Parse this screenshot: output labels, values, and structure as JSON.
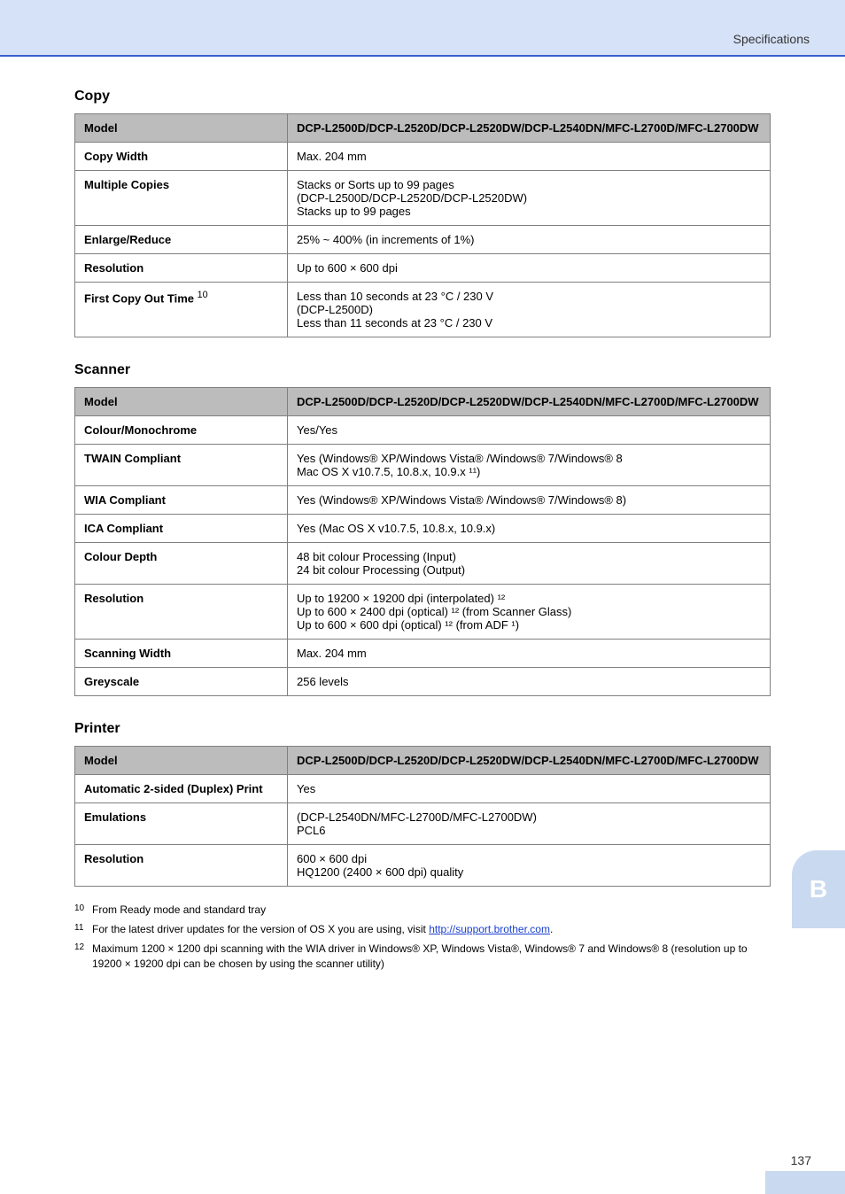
{
  "header": {
    "title": "Specifications"
  },
  "sections": [
    {
      "title": "Copy",
      "columns": [
        "Model",
        "DCP-L2500D/DCP-L2520D/DCP-L2520DW/DCP-L2540DN/MFC-L2700D/MFC-L2700DW"
      ],
      "rows": [
        {
          "label": "Copy Width",
          "value": "Max. 204 mm"
        },
        {
          "label": "Multiple Copies",
          "value_lines": [
            "Stacks or Sorts up to 99 pages",
            "(DCP-L2500D/DCP-L2520D/DCP-L2520DW)",
            "Stacks up to 99 pages"
          ]
        },
        {
          "label": "Enlarge/Reduce",
          "value": "25% ~ 400% (in increments of 1%)"
        },
        {
          "label": "Resolution",
          "value": "Up to 600 × 600 dpi"
        },
        {
          "label": "First Copy Out Time",
          "sup": "10",
          "value_lines": [
            "Less than 10 seconds at 23 °C / 230 V",
            "(DCP-L2500D)",
            "Less than 11 seconds at 23 °C / 230 V"
          ]
        }
      ]
    },
    {
      "title": "Scanner",
      "columns": [
        "Model",
        "DCP-L2500D/DCP-L2520D/DCP-L2520DW/DCP-L2540DN/MFC-L2700D/MFC-L2700DW"
      ],
      "rows": [
        {
          "label": "Colour/Monochrome",
          "value": "Yes/Yes"
        },
        {
          "label": "TWAIN Compliant",
          "value_lines": [
            "Yes (Windows® XP/Windows Vista® /Windows® 7/Windows® 8",
            "Mac OS X v10.7.5, 10.8.x, 10.9.x ¹¹)"
          ]
        },
        {
          "label": "WIA Compliant",
          "value": "Yes (Windows® XP/Windows Vista® /Windows® 7/Windows® 8)"
        },
        {
          "label": "ICA Compliant",
          "value": "Yes (Mac OS X v10.7.5, 10.8.x, 10.9.x)"
        },
        {
          "label": "Colour Depth",
          "value_lines": [
            "48 bit colour Processing (Input)",
            "24 bit colour Processing (Output)"
          ]
        },
        {
          "label": "Resolution",
          "value_lines": [
            "Up to 19200 × 19200 dpi (interpolated) ¹²",
            "Up to 600 × 2400 dpi (optical) ¹² (from Scanner Glass)",
            "Up to 600 × 600 dpi (optical) ¹² (from ADF ¹)"
          ]
        },
        {
          "label": "Scanning Width",
          "value": "Max. 204 mm"
        },
        {
          "label": "Greyscale",
          "value": "256 levels"
        }
      ]
    },
    {
      "title": "Printer",
      "columns": [
        "Model",
        "DCP-L2500D/DCP-L2520D/DCP-L2520DW/DCP-L2540DN/MFC-L2700D/MFC-L2700DW"
      ],
      "rows": [
        {
          "label": "Automatic 2-sided (Duplex) Print",
          "value": "Yes"
        },
        {
          "label": "Emulations",
          "value_lines": [
            "(DCP-L2540DN/MFC-L2700D/MFC-L2700DW)",
            "PCL6"
          ]
        },
        {
          "label": "Resolution",
          "value_lines": [
            "600 × 600 dpi",
            "HQ1200 (2400 × 600 dpi) quality"
          ]
        }
      ]
    }
  ],
  "footnotes": [
    {
      "sup": "10",
      "text": "From Ready mode and standard tray"
    },
    {
      "sup": "11",
      "text": "For the latest driver updates for the version of OS X you are using, visit",
      "link_text": "http://support.brother.com"
    },
    {
      "sup": "12",
      "text": "Maximum 1200 × 1200 dpi scanning with the WIA driver in Windows® XP, Windows Vista®, Windows® 7 and Windows® 8 (resolution up to 19200 × 19200 dpi can be chosen by using the scanner utility)"
    }
  ],
  "side_tab": "B",
  "page_number": "137"
}
